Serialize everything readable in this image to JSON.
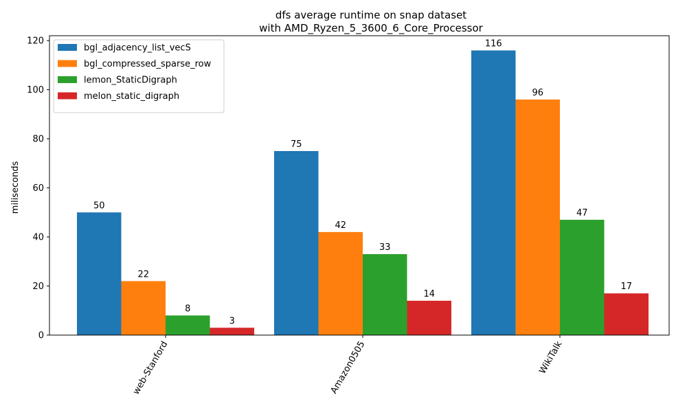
{
  "chart_data": {
    "type": "bar",
    "title": "dfs average runtime on snap dataset",
    "subtitle": "with AMD_Ryzen_5_3600_6_Core_Processor",
    "xlabel": "",
    "ylabel": "miliseconds",
    "ylim": [
      0,
      122
    ],
    "yticks": [
      0,
      20,
      40,
      60,
      80,
      100,
      120
    ],
    "categories": [
      "web-Stanford",
      "Amazon0505",
      "WikiTalk"
    ],
    "series": [
      {
        "name": "bgl_adjacency_list_vecS",
        "color": "#1f77b4",
        "values": [
          50,
          75,
          116
        ]
      },
      {
        "name": "bgl_compressed_sparse_row",
        "color": "#ff7f0e",
        "values": [
          22,
          42,
          96
        ]
      },
      {
        "name": "lemon_StaticDigraph",
        "color": "#2ca02c",
        "values": [
          8,
          33,
          47
        ]
      },
      {
        "name": "melon_static_digraph",
        "color": "#d62728",
        "values": [
          3,
          14,
          17
        ]
      }
    ],
    "grid": false,
    "legend_position": "top-left",
    "x_tick_rotation_deg": 60
  }
}
